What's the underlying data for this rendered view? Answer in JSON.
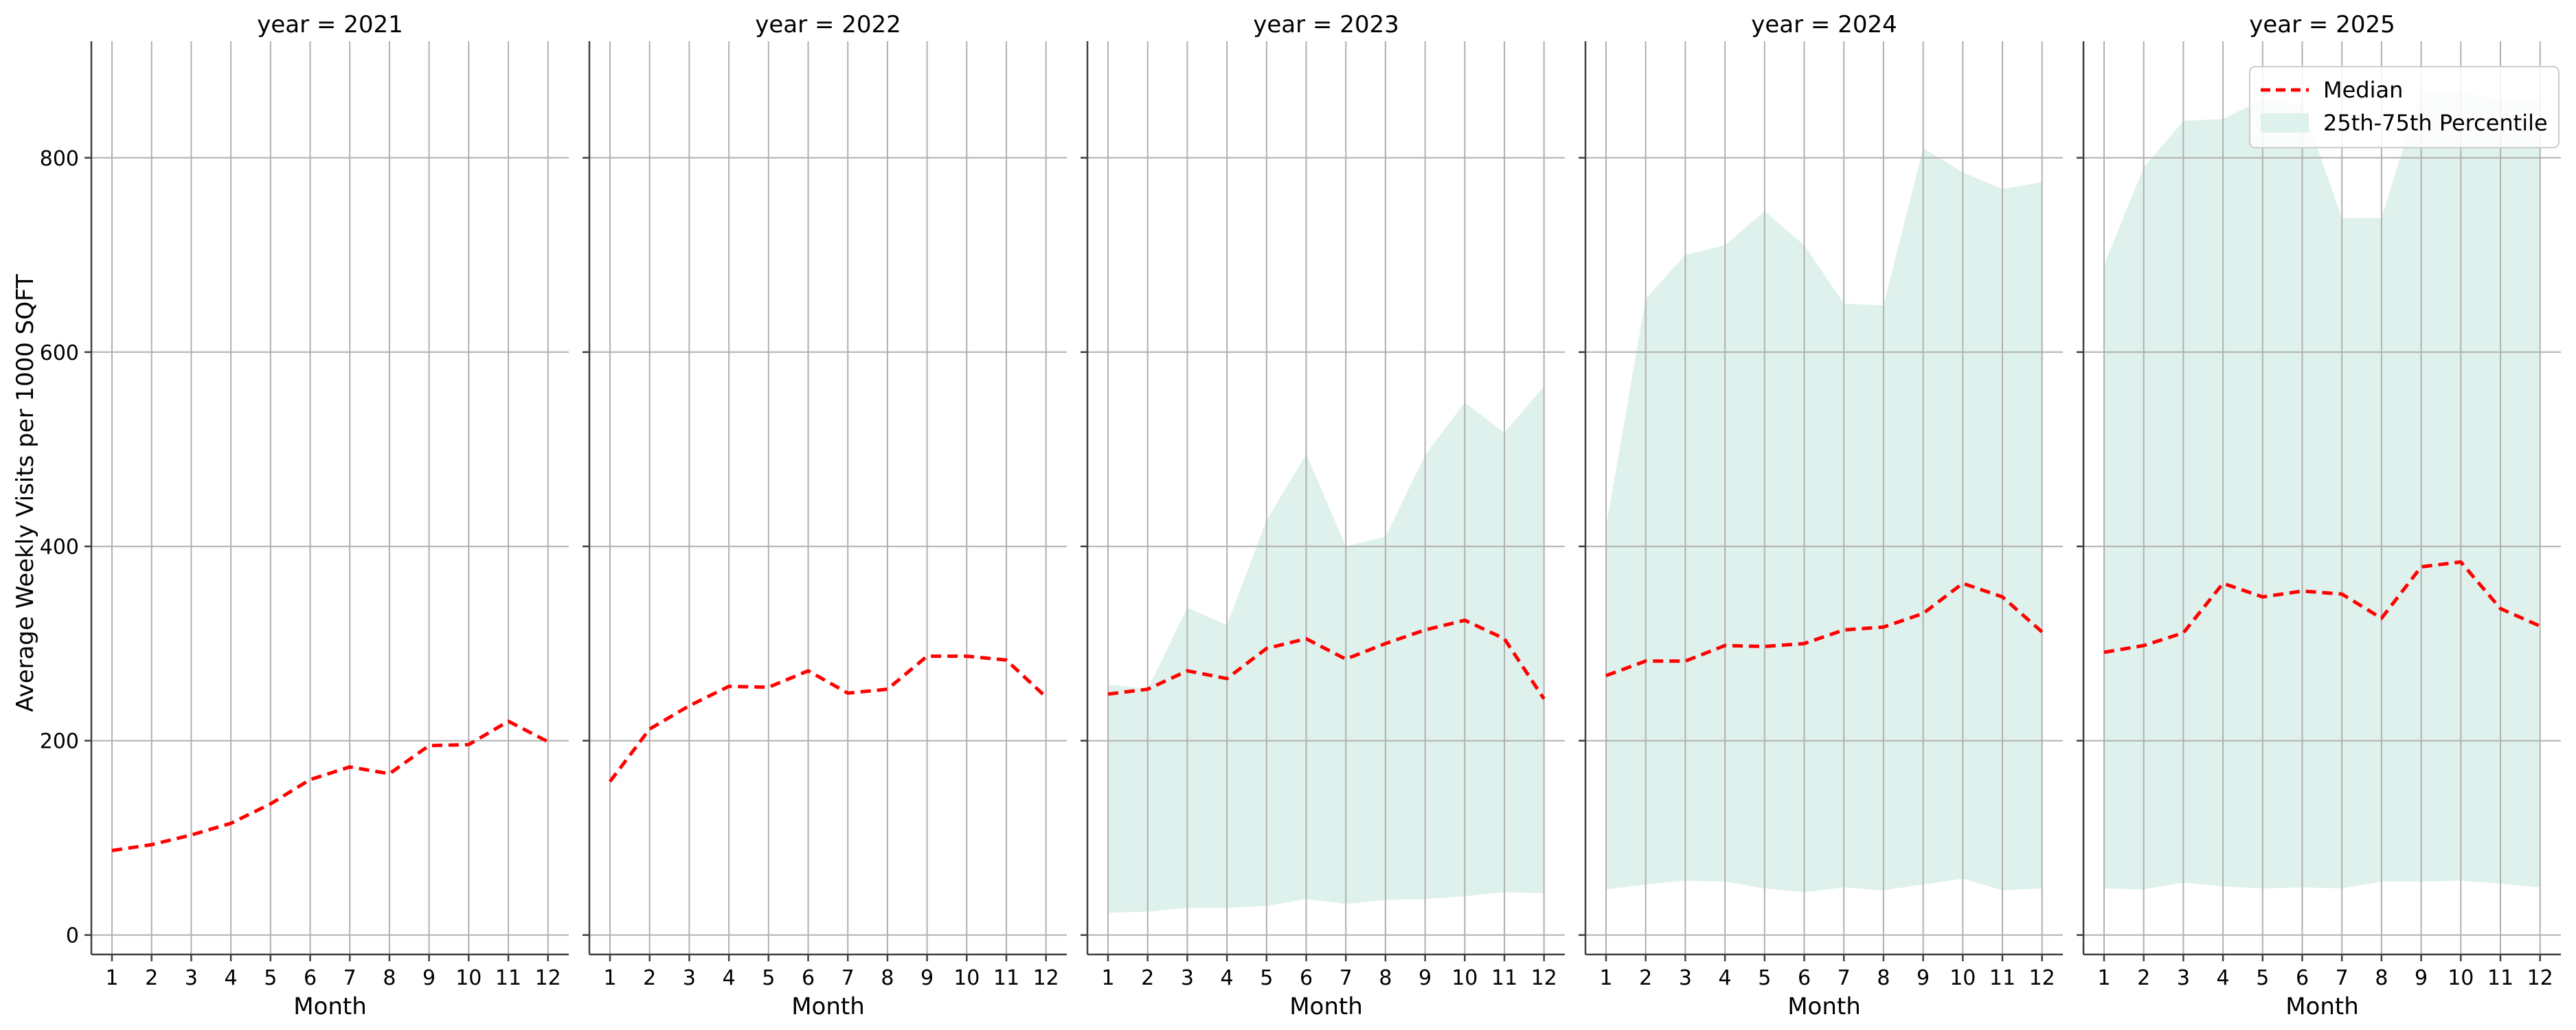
{
  "chart_data": {
    "type": "line",
    "layout": "facet-grid",
    "facet_title_prefix": "year = ",
    "ylabel": "Average Weekly Visits per 1000 SQFT",
    "xlabel": "Month",
    "x": [
      1,
      2,
      3,
      4,
      5,
      6,
      7,
      8,
      9,
      10,
      11,
      12
    ],
    "ylim": [
      -20,
      920
    ],
    "yticks": [
      0,
      200,
      400,
      600,
      800
    ],
    "grid": true,
    "legend": {
      "placement": "top-right",
      "entries": [
        "Median",
        "25th-75th Percentile"
      ]
    },
    "colors": {
      "median": "#ff0000",
      "band": "#dff1ec",
      "grid": "#b0b0b0",
      "axis": "#404040"
    },
    "facets": [
      {
        "year": "2021",
        "median": [
          87,
          93,
          103,
          115,
          135,
          160,
          173,
          166,
          195,
          196,
          220,
          199
        ],
        "p25": null,
        "p75": null
      },
      {
        "year": "2022",
        "median": [
          158,
          212,
          236,
          256,
          255,
          272,
          249,
          253,
          287,
          287,
          283,
          245
        ],
        "p25": null,
        "p75": null
      },
      {
        "year": "2023",
        "median": [
          248,
          253,
          272,
          264,
          295,
          305,
          284,
          300,
          314,
          324,
          305,
          243
        ],
        "p25": [
          23,
          24,
          28,
          28,
          30,
          37,
          32,
          36,
          37,
          40,
          44,
          43
        ],
        "p75": [
          258,
          253,
          337,
          319,
          427,
          495,
          400,
          410,
          494,
          548,
          517,
          565
        ]
      },
      {
        "year": "2024",
        "median": [
          267,
          282,
          282,
          298,
          297,
          300,
          314,
          317,
          331,
          362,
          348,
          312
        ],
        "p25": [
          47,
          52,
          56,
          55,
          48,
          44,
          49,
          46,
          52,
          58,
          46,
          48
        ],
        "p75": [
          420,
          655,
          700,
          710,
          745,
          710,
          650,
          648,
          810,
          785,
          768,
          775
        ]
      },
      {
        "year": "2025",
        "median": [
          291,
          298,
          311,
          362,
          348,
          354,
          351,
          326,
          379,
          384,
          336,
          318
        ],
        "p25": [
          48,
          47,
          54,
          50,
          48,
          49,
          48,
          55,
          55,
          56,
          53,
          49
        ],
        "p75": [
          690,
          790,
          838,
          840,
          860,
          855,
          738,
          738,
          870,
          868,
          860,
          858
        ]
      }
    ]
  }
}
